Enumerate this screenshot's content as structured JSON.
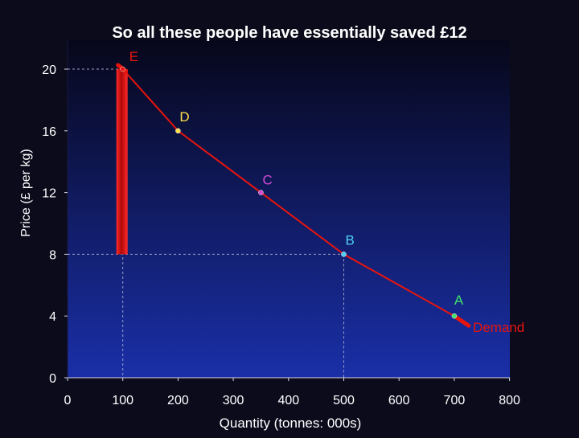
{
  "slide": {
    "title": "So all these people have essentially saved £12"
  },
  "colors": {
    "background": "#0b0b1c",
    "plot_gradient_top": "#07071a",
    "plot_gradient_bottom": "#1a2fa8",
    "demand_line": "#e8150e",
    "savings_bar": "#ff1a1a",
    "guide_lines": "#9aa0c8"
  },
  "chart_data": {
    "type": "line",
    "title": "So all these people have essentially saved £12",
    "xlabel": "Quantity (tonnes: 000s)",
    "ylabel": "Price (£ per kg)",
    "xlim": [
      0,
      800
    ],
    "ylim": [
      0,
      22
    ],
    "x_ticks": [
      0,
      100,
      200,
      300,
      400,
      500,
      600,
      700,
      800
    ],
    "y_ticks": [
      0,
      4,
      8,
      12,
      16,
      20
    ],
    "grid": false,
    "series": [
      {
        "name": "Demand",
        "x": [
          100,
          200,
          350,
          500,
          700
        ],
        "y": [
          20,
          16,
          12,
          8,
          4
        ]
      }
    ],
    "points": [
      {
        "label": "E",
        "x": 100,
        "y": 20,
        "color": "#e8150e"
      },
      {
        "label": "D",
        "x": 200,
        "y": 16,
        "color": "#ffe04a"
      },
      {
        "label": "C",
        "x": 350,
        "y": 12,
        "color": "#d24bd2"
      },
      {
        "label": "B",
        "x": 500,
        "y": 8,
        "color": "#4fd0f5"
      },
      {
        "label": "A",
        "x": 700,
        "y": 4,
        "color": "#3fe36a"
      }
    ],
    "demand_label": "Demand",
    "savings_bar": {
      "x": 100,
      "y_from": 8,
      "y_to": 20
    },
    "guides": [
      {
        "x": 100,
        "y": 20
      },
      {
        "x": 500,
        "y": 8
      }
    ]
  }
}
